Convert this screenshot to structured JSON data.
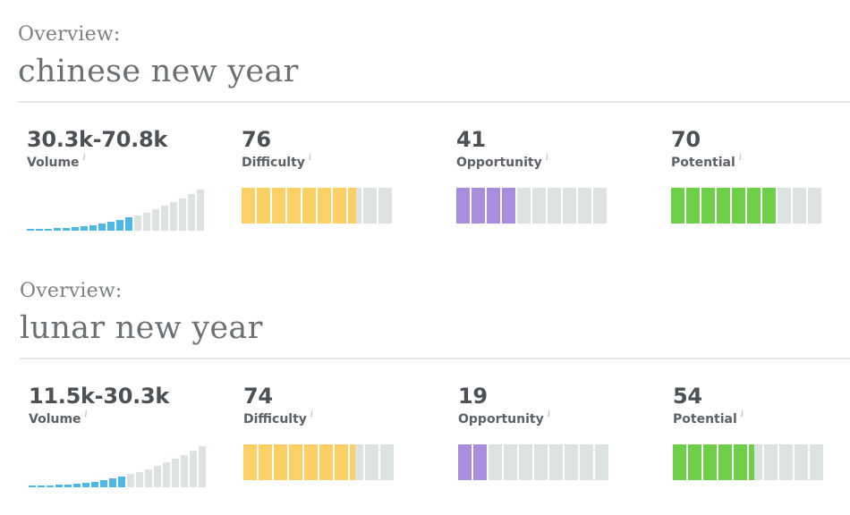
{
  "overviews": [
    {
      "label": "Overview:",
      "title": "chinese new year",
      "volume": {
        "value": "30.3k-70.8k",
        "label": "Volume",
        "info": "i"
      },
      "difficulty": {
        "value": "76",
        "label": "Difficulty",
        "info": "i",
        "level": 0.76,
        "color": "#fdd066"
      },
      "opportunity": {
        "value": "41",
        "label": "Opportunity",
        "info": "i",
        "level": 0.4,
        "color": "#a98ede"
      },
      "potential": {
        "value": "70",
        "label": "Potential",
        "info": "i",
        "level": 0.7,
        "color": "#6ecf48"
      }
    },
    {
      "label": "Overview:",
      "title": "lunar new year",
      "volume": {
        "value": "11.5k-30.3k",
        "label": "Volume",
        "info": "i"
      },
      "difficulty": {
        "value": "74",
        "label": "Difficulty",
        "info": "i",
        "level": 0.74,
        "color": "#fdd066"
      },
      "opportunity": {
        "value": "19",
        "label": "Opportunity",
        "info": "i",
        "level": 0.2,
        "color": "#a98ede"
      },
      "potential": {
        "value": "54",
        "label": "Potential",
        "info": "i",
        "level": 0.54,
        "color": "#6ecf48"
      }
    }
  ],
  "colors": {
    "volume_active": "#4fb7e6",
    "inactive": "#dde2e3"
  }
}
